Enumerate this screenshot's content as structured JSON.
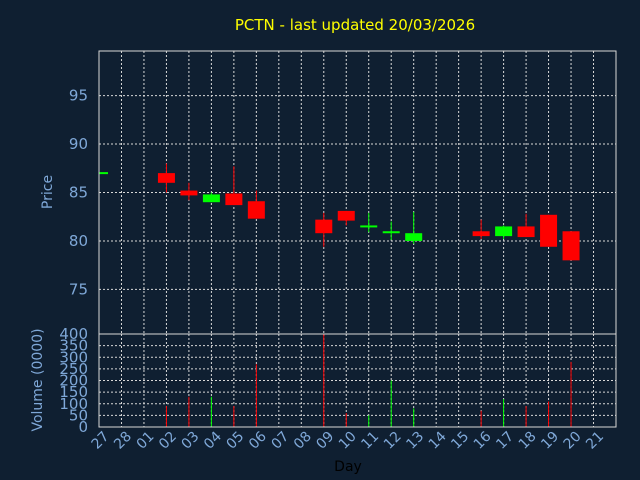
{
  "title": "PCTN - last updated 20/03/2026",
  "colors": {
    "background": "#0f1f31",
    "up": "#00ff00",
    "down": "#ff0000",
    "text": "#7fa8d8",
    "title": "#ffff00"
  },
  "chart_data": [
    {
      "type": "candlestick",
      "ylabel": "Price",
      "ylim": [
        70.4,
        99.6
      ],
      "yticks": [
        75,
        80,
        85,
        90,
        95
      ],
      "grid": true,
      "x": [
        "27",
        "28",
        "01",
        "02",
        "03",
        "04",
        "05",
        "06",
        "07",
        "08",
        "09",
        "10",
        "11",
        "12",
        "13",
        "14",
        "15",
        "16",
        "17",
        "18",
        "19",
        "20",
        "21"
      ],
      "candles": [
        {
          "x": "27",
          "open": 87.0,
          "close": 87.0,
          "high": 87.0,
          "low": 87.0
        },
        {
          "x": "02",
          "open": 87.0,
          "close": 86.0,
          "high": 88.0,
          "low": 85.0
        },
        {
          "x": "03",
          "open": 85.2,
          "close": 84.7,
          "high": 86.0,
          "low": 84.2
        },
        {
          "x": "04",
          "open": 84.0,
          "close": 84.8,
          "high": 85.0,
          "low": 84.0
        },
        {
          "x": "05",
          "open": 84.9,
          "close": 83.7,
          "high": 87.7,
          "low": 83.7
        },
        {
          "x": "06",
          "open": 84.1,
          "close": 82.3,
          "high": 85.2,
          "low": 82.3
        },
        {
          "x": "09",
          "open": 82.2,
          "close": 80.8,
          "high": 82.9,
          "low": 79.4
        },
        {
          "x": "10",
          "open": 83.1,
          "close": 82.1,
          "high": 83.1,
          "low": 81.6
        },
        {
          "x": "11",
          "open": 81.3,
          "close": 81.5,
          "high": 82.9,
          "low": 80.9
        },
        {
          "x": "12",
          "open": 80.7,
          "close": 80.9,
          "high": 82.0,
          "low": 80.1
        },
        {
          "x": "13",
          "open": 80.0,
          "close": 80.8,
          "high": 83.0,
          "low": 79.7
        },
        {
          "x": "16",
          "open": 81.0,
          "close": 80.5,
          "high": 82.2,
          "low": 80.2
        },
        {
          "x": "17",
          "open": 80.5,
          "close": 81.5,
          "high": 81.6,
          "low": 80.2
        },
        {
          "x": "18",
          "open": 81.5,
          "close": 80.4,
          "high": 82.8,
          "low": 80.4
        },
        {
          "x": "19",
          "open": 82.7,
          "close": 79.4,
          "high": 82.7,
          "low": 79.4
        },
        {
          "x": "20",
          "open": 81.0,
          "close": 78.0,
          "high": 81.0,
          "low": 78.0
        }
      ]
    },
    {
      "type": "bar",
      "xlabel": "Day",
      "ylabel": "Volume (0000)",
      "ylim": [
        0,
        400
      ],
      "yticks": [
        0,
        50,
        100,
        150,
        200,
        250,
        300,
        350,
        400
      ],
      "grid": true,
      "bars": [
        {
          "x": "02",
          "value": 90,
          "direction": "down"
        },
        {
          "x": "03",
          "value": 130,
          "direction": "down"
        },
        {
          "x": "04",
          "value": 130,
          "direction": "up"
        },
        {
          "x": "05",
          "value": 90,
          "direction": "down"
        },
        {
          "x": "06",
          "value": 270,
          "direction": "down"
        },
        {
          "x": "09",
          "value": 400,
          "direction": "down"
        },
        {
          "x": "10",
          "value": 60,
          "direction": "down"
        },
        {
          "x": "11",
          "value": 50,
          "direction": "up"
        },
        {
          "x": "12",
          "value": 200,
          "direction": "up"
        },
        {
          "x": "13",
          "value": 80,
          "direction": "up"
        },
        {
          "x": "16",
          "value": 70,
          "direction": "down"
        },
        {
          "x": "17",
          "value": 120,
          "direction": "up"
        },
        {
          "x": "18",
          "value": 90,
          "direction": "down"
        },
        {
          "x": "19",
          "value": 110,
          "direction": "down"
        },
        {
          "x": "20",
          "value": 280,
          "direction": "down"
        }
      ]
    }
  ]
}
